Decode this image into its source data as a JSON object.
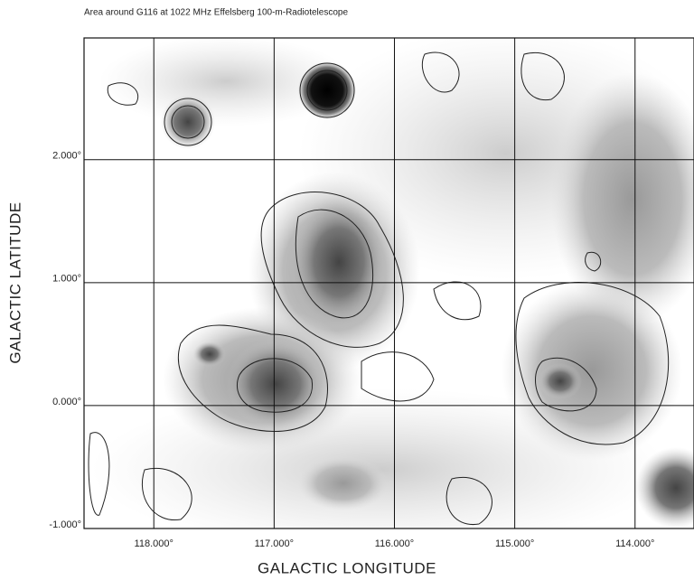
{
  "chart_data": {
    "type": "map",
    "title": "Area around G116 at 1022 MHz Effelsberg 100-m-Radiotelescope",
    "xlabel": "GALACTIC LONGITUDE",
    "ylabel": "GALACTIC LATITUDE",
    "xlim": [
      118.58,
      113.51
    ],
    "ylim": [
      -1,
      2.99
    ],
    "xticks": [
      {
        "value": 118,
        "label": "118.000°"
      },
      {
        "value": 117,
        "label": "117.000°"
      },
      {
        "value": 116,
        "label": "116.000°"
      },
      {
        "value": 115,
        "label": "115.000°"
      },
      {
        "value": 114,
        "label": "114.000°"
      }
    ],
    "yticks": [
      {
        "value": -1,
        "label": "-1.000°"
      },
      {
        "value": 0,
        "label": "0.000°"
      },
      {
        "value": 1,
        "label": "1.000°"
      },
      {
        "value": 2,
        "label": "2.000°"
      }
    ],
    "grid": true
  }
}
